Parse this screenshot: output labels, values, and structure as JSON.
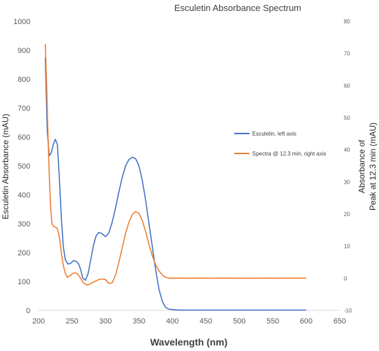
{
  "chart_data": {
    "type": "line",
    "title": "Esculetin Absorbance Spectrum",
    "xlabel": "Wavelength (nm)",
    "ylabel": "Esculetin Absorbance (mAU)",
    "y2label_line1": "Absorbance of",
    "y2label_line2": "Peak at 12.3 min  (mAU)",
    "xlim": [
      200,
      650
    ],
    "ylim": [
      0,
      1000
    ],
    "y2lim": [
      -10,
      80
    ],
    "x_ticks": [
      "200",
      "250",
      "300",
      "350",
      "400",
      "450",
      "500",
      "550",
      "600",
      "650"
    ],
    "y_ticks": [
      "0",
      "100",
      "200",
      "300",
      "400",
      "500",
      "600",
      "700",
      "800",
      "900",
      "1000"
    ],
    "y2_ticks": [
      "-10",
      "0",
      "10",
      "20",
      "30",
      "40",
      "50",
      "60",
      "70",
      "80"
    ],
    "grid": false,
    "legend_position": "right",
    "series": [
      {
        "name": "Esculetin, left axis",
        "axis": "left",
        "color": "#4472C4",
        "x": [
          210,
          213,
          216,
          219,
          222,
          225,
          228,
          231,
          234,
          237,
          240,
          244,
          248,
          252,
          256,
          260,
          263,
          266,
          270,
          274,
          278,
          282,
          286,
          290,
          295,
          300,
          305,
          310,
          315,
          320,
          325,
          330,
          335,
          340,
          345,
          350,
          355,
          360,
          365,
          370,
          375,
          380,
          385,
          390,
          395,
          400,
          405,
          410,
          420,
          440,
          460,
          480,
          500,
          520,
          540,
          560,
          580,
          600
        ],
        "y": [
          875,
          620,
          535,
          545,
          575,
          592,
          575,
          460,
          320,
          220,
          175,
          160,
          163,
          172,
          170,
          160,
          140,
          112,
          104,
          128,
          175,
          225,
          258,
          270,
          265,
          255,
          268,
          305,
          355,
          410,
          460,
          500,
          522,
          530,
          525,
          500,
          450,
          380,
          300,
          220,
          140,
          72,
          30,
          10,
          4,
          3,
          2,
          1,
          1,
          1,
          1,
          1,
          1,
          1,
          1,
          1,
          1,
          1
        ]
      },
      {
        "name": "Spectra @ 12.3 min, right axis",
        "axis": "right",
        "color": "#ED7D31",
        "x": [
          210,
          212,
          214,
          216,
          218,
          220,
          222,
          225,
          228,
          231,
          234,
          237,
          240,
          243,
          247,
          251,
          255,
          258,
          261,
          264,
          267,
          270,
          273,
          276,
          280,
          285,
          290,
          295,
          300,
          305,
          310,
          315,
          320,
          325,
          330,
          335,
          340,
          345,
          350,
          355,
          360,
          365,
          370,
          375,
          380,
          385,
          390,
          395,
          400,
          405,
          410,
          420,
          440,
          460,
          480,
          500,
          520,
          540,
          560,
          580,
          600
        ],
        "y": [
          73,
          60,
          45,
          32,
          22,
          17,
          16.2,
          16,
          15.5,
          13,
          8,
          4,
          1.5,
          0.3,
          0.8,
          1.5,
          1.7,
          1.4,
          0.6,
          -0.4,
          -1.4,
          -1.9,
          -2.1,
          -1.9,
          -1.4,
          -0.9,
          -0.4,
          -0.2,
          -0.4,
          -1.6,
          -1.4,
          1.0,
          5.0,
          9.5,
          14.0,
          17.5,
          19.8,
          20.8,
          20.2,
          18.0,
          14.5,
          10.5,
          7.0,
          4.2,
          2.3,
          1.0,
          0.3,
          0.0,
          0.1,
          0.0,
          0.1,
          0.0,
          0.05,
          0.0,
          0.05,
          0.0,
          0.0,
          0.05,
          0.0,
          0.05,
          0.05
        ]
      }
    ]
  }
}
